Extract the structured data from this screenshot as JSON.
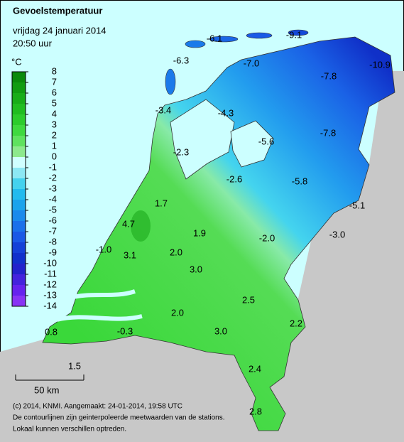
{
  "header": {
    "title": "Gevoelstemperatuur",
    "date": "vrijdag 24 januari 2014",
    "time": "20:50 uur"
  },
  "legend": {
    "unit": "°C",
    "ticks": [
      8,
      7,
      6,
      5,
      4,
      3,
      2,
      1,
      0,
      -1,
      -2,
      -3,
      -4,
      -5,
      -6,
      -7,
      -8,
      -9,
      -10,
      -11,
      -12,
      -13,
      -14
    ],
    "colors": [
      "#0b8a0b",
      "#119c11",
      "#18ad18",
      "#20bd20",
      "#2ccc2c",
      "#3fd93f",
      "#5fe25f",
      "#8de98d",
      "#d0ffff",
      "#8ce8f4",
      "#44d2ee",
      "#22bbee",
      "#1aa3ec",
      "#1a8aec",
      "#1a70ea",
      "#1a58e6",
      "#1440d8",
      "#1030cc",
      "#2222cc",
      "#4422dd",
      "#6622ee",
      "#8833f5"
    ]
  },
  "stations": [
    {
      "label": "-6.1"
    },
    {
      "label": "-9.1"
    },
    {
      "label": "-6.3"
    },
    {
      "label": "-7.0"
    },
    {
      "label": "-7.8"
    },
    {
      "label": "-10.9"
    },
    {
      "label": "-3.4"
    },
    {
      "label": "-4.3"
    },
    {
      "label": "-5.6"
    },
    {
      "label": "-7.8"
    },
    {
      "label": "-2.3"
    },
    {
      "label": "-2.6"
    },
    {
      "label": "-5.8"
    },
    {
      "label": "-5.1"
    },
    {
      "label": "1.7"
    },
    {
      "label": "4.7"
    },
    {
      "label": "1.9"
    },
    {
      "label": "-2.0"
    },
    {
      "label": "-3.0"
    },
    {
      "label": "-1.0"
    },
    {
      "label": "3.1"
    },
    {
      "label": "2.0"
    },
    {
      "label": "3.0"
    },
    {
      "label": "2.5"
    },
    {
      "label": "2.0"
    },
    {
      "label": "2.2"
    },
    {
      "label": "0.8"
    },
    {
      "label": "-0.3"
    },
    {
      "label": "3.0"
    },
    {
      "label": "1.5"
    },
    {
      "label": "2.4"
    },
    {
      "label": "2.8"
    }
  ],
  "scale": {
    "label": "50 km"
  },
  "footer": {
    "line1": "(c) 2014, KNMI. Aangemaakt: 24-01-2014, 19:58 UTC",
    "line2": "De contourlijnen zijn geinterpoleerde meetwaarden van de stations.",
    "line3": "Lokaal kunnen verschillen optreden."
  }
}
